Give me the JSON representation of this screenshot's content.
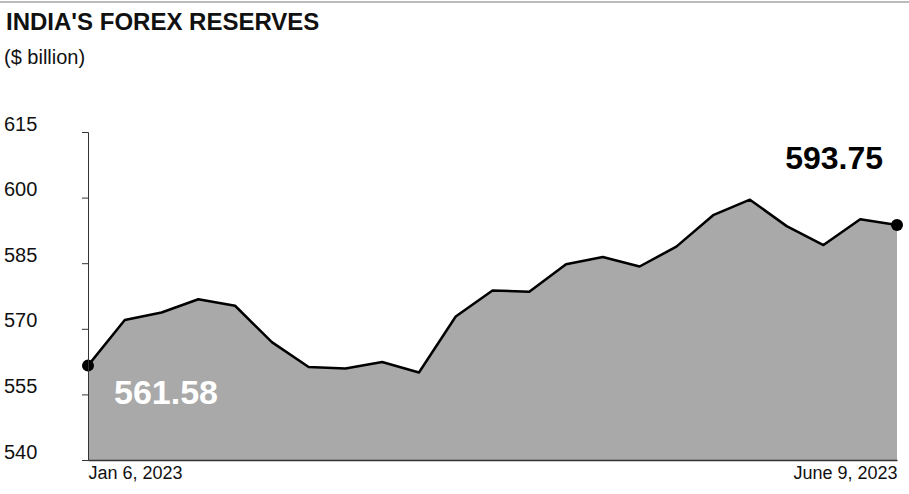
{
  "chart_data": {
    "type": "area",
    "title": "INDIA'S FOREX RESERVES",
    "subtitle": "($ billion)",
    "categories": [
      "Jan 6, 2023",
      null,
      null,
      null,
      null,
      null,
      null,
      null,
      null,
      null,
      null,
      null,
      null,
      null,
      null,
      null,
      null,
      null,
      null,
      null,
      null,
      null,
      "June 9, 2023"
    ],
    "values": [
      561.58,
      572.0,
      573.73,
      576.76,
      575.27,
      566.95,
      561.27,
      560.94,
      562.4,
      560.0,
      572.8,
      578.78,
      578.45,
      584.76,
      586.41,
      584.25,
      588.78,
      595.98,
      599.53,
      593.48,
      589.14,
      595.07,
      593.75
    ],
    "color": "#a9a9a9",
    "annotations": [
      "561.58",
      "593.75"
    ],
    "ylim": [
      540,
      615
    ],
    "yticks": [
      540,
      555,
      570,
      585,
      600,
      615
    ],
    "grid": false
  }
}
